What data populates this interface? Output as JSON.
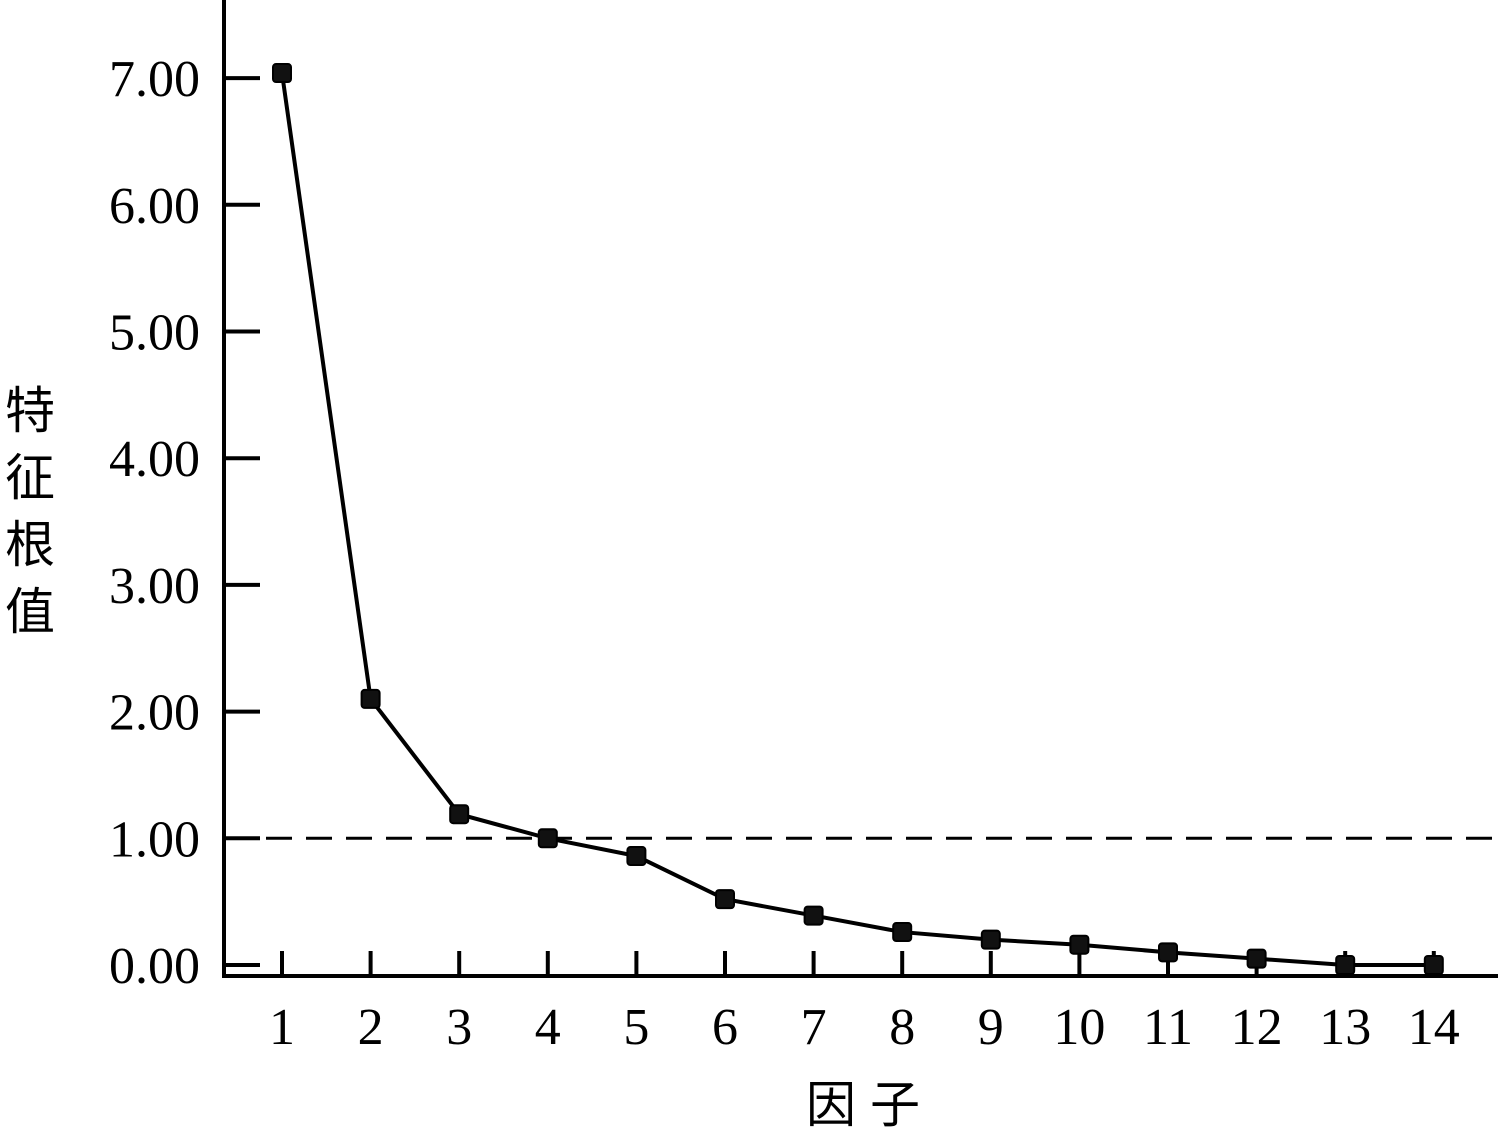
{
  "chart_data": {
    "type": "line",
    "title": "",
    "xlabel": "因子",
    "ylabel": "特征根值",
    "ylabel_chars": [
      "特",
      "征",
      "根",
      "值"
    ],
    "x": [
      1,
      2,
      3,
      4,
      5,
      6,
      7,
      8,
      9,
      10,
      11,
      12,
      13,
      14
    ],
    "x_tick_labels": [
      "1",
      "2",
      "3",
      "4",
      "5",
      "6",
      "7",
      "8",
      "9",
      "10",
      "11",
      "12",
      "13",
      "14"
    ],
    "y": [
      7.04,
      2.1,
      1.19,
      1.0,
      0.86,
      0.52,
      0.39,
      0.26,
      0.2,
      0.16,
      0.1,
      0.05,
      0.0,
      0.0
    ],
    "y_ticks": [
      0,
      1,
      2,
      3,
      4,
      5,
      6,
      7
    ],
    "y_tick_labels": [
      "0.00",
      "1.00",
      "2.00",
      "3.00",
      "4.00",
      "5.00",
      "6.00",
      "7.00"
    ],
    "ylim": [
      0,
      7.6
    ],
    "reference_line": {
      "y": 1.0,
      "style": "dashed"
    },
    "grid": false,
    "legend": "none",
    "colors": {
      "line": "#000000",
      "marker": "#111111",
      "axis": "#000000"
    }
  }
}
